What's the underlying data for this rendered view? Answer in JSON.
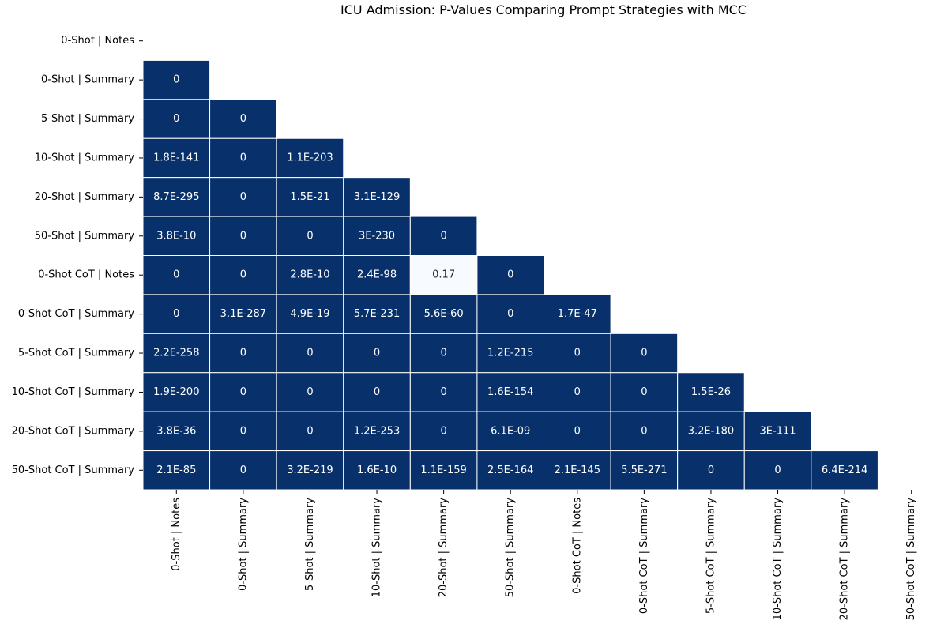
{
  "chart_data": {
    "type": "heatmap",
    "title": "ICU Admission: P-Values Comparing Prompt Strategies with MCC",
    "row_labels": [
      "0-Shot | Notes",
      "0-Shot | Summary",
      "5-Shot | Summary",
      "10-Shot | Summary",
      "20-Shot | Summary",
      "50-Shot | Summary",
      "0-Shot CoT | Notes",
      "0-Shot CoT | Summary",
      "5-Shot CoT | Summary",
      "10-Shot CoT | Summary",
      "20-Shot CoT | Summary",
      "50-Shot CoT | Summary"
    ],
    "col_labels": [
      "0-Shot | Notes",
      "0-Shot | Summary",
      "5-Shot | Summary",
      "10-Shot | Summary",
      "20-Shot | Summary",
      "50-Shot | Summary",
      "0-Shot CoT | Notes",
      "0-Shot CoT | Summary",
      "5-Shot CoT | Summary",
      "10-Shot CoT | Summary",
      "20-Shot CoT | Summary",
      "50-Shot CoT | Summary"
    ],
    "mask": "upper-triangle-including-diagonal",
    "colormap": {
      "low": "#08306b",
      "high": "#f7fbff"
    },
    "grid_line_color": "#ffffff",
    "values": [
      [],
      [
        "0"
      ],
      [
        "0",
        "0"
      ],
      [
        "1.8E-141",
        "0",
        "1.1E-203"
      ],
      [
        "8.7E-295",
        "0",
        "1.5E-21",
        "3.1E-129"
      ],
      [
        "3.8E-10",
        "0",
        "0",
        "3E-230",
        "0"
      ],
      [
        "0",
        "0",
        "2.8E-10",
        "2.4E-98",
        "0.17",
        "0"
      ],
      [
        "0",
        "3.1E-287",
        "4.9E-19",
        "5.7E-231",
        "5.6E-60",
        "0",
        "1.7E-47"
      ],
      [
        "2.2E-258",
        "0",
        "0",
        "0",
        "0",
        "1.2E-215",
        "0",
        "0"
      ],
      [
        "1.9E-200",
        "0",
        "0",
        "0",
        "0",
        "1.6E-154",
        "0",
        "0",
        "1.5E-26"
      ],
      [
        "3.8E-36",
        "0",
        "0",
        "1.2E-253",
        "0",
        "6.1E-09",
        "0",
        "0",
        "3.2E-180",
        "3E-111"
      ],
      [
        "2.1E-85",
        "0",
        "3.2E-219",
        "1.6E-10",
        "1.1E-159",
        "2.5E-164",
        "2.1E-145",
        "5.5E-271",
        "0",
        "0",
        "6.4E-214"
      ]
    ]
  }
}
